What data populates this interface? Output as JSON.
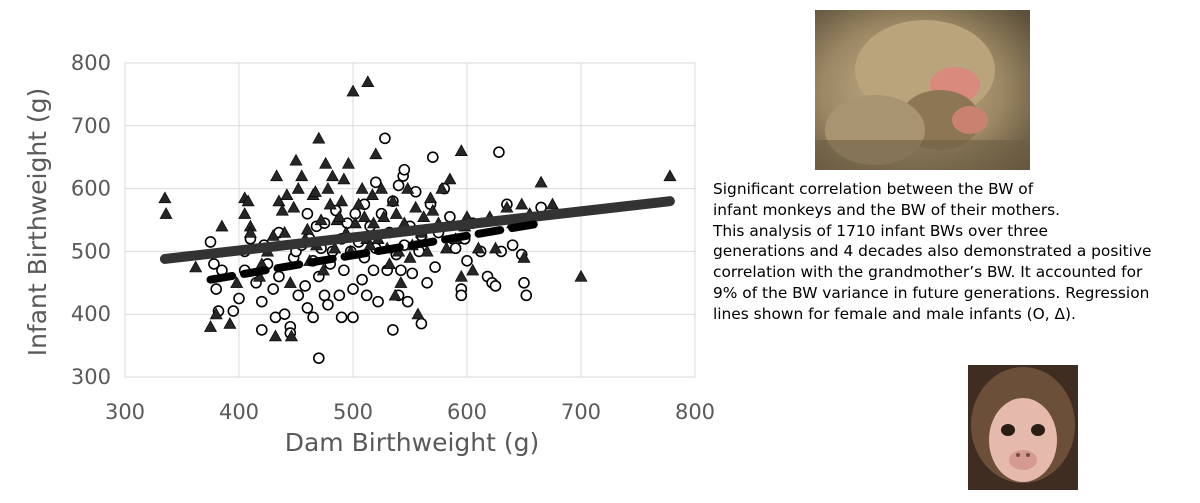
{
  "chart_data": {
    "type": "scatter",
    "title": "",
    "xlabel": "Dam Birthweight (g)",
    "ylabel": "Infant Birthweight (g)",
    "xlim": [
      300,
      800
    ],
    "ylim": [
      300,
      800
    ],
    "xticks": [
      300,
      400,
      500,
      600,
      700,
      800
    ],
    "yticks": [
      300,
      400,
      500,
      600,
      700,
      800
    ],
    "grid": true,
    "legend": "none",
    "series": [
      {
        "marker": "circle-open",
        "color": "#000000",
        "points": [
          [
            375,
            515
          ],
          [
            378,
            480
          ],
          [
            380,
            440
          ],
          [
            382,
            405
          ],
          [
            385,
            470
          ],
          [
            395,
            405
          ],
          [
            400,
            425
          ],
          [
            405,
            470
          ],
          [
            405,
            500
          ],
          [
            410,
            520
          ],
          [
            415,
            450
          ],
          [
            420,
            375
          ],
          [
            420,
            420
          ],
          [
            422,
            510
          ],
          [
            425,
            480
          ],
          [
            430,
            440
          ],
          [
            432,
            395
          ],
          [
            435,
            460
          ],
          [
            435,
            530
          ],
          [
            440,
            400
          ],
          [
            445,
            380
          ],
          [
            445,
            370
          ],
          [
            448,
            490
          ],
          [
            450,
            500
          ],
          [
            452,
            430
          ],
          [
            455,
            510
          ],
          [
            458,
            445
          ],
          [
            460,
            410
          ],
          [
            460,
            560
          ],
          [
            462,
            520
          ],
          [
            465,
            485
          ],
          [
            465,
            395
          ],
          [
            468,
            540
          ],
          [
            470,
            330
          ],
          [
            470,
            460
          ],
          [
            472,
            505
          ],
          [
            475,
            430
          ],
          [
            475,
            545
          ],
          [
            478,
            415
          ],
          [
            480,
            480
          ],
          [
            482,
            500
          ],
          [
            485,
            565
          ],
          [
            488,
            430
          ],
          [
            490,
            520
          ],
          [
            490,
            395
          ],
          [
            492,
            470
          ],
          [
            495,
            545
          ],
          [
            498,
            500
          ],
          [
            500,
            395
          ],
          [
            500,
            440
          ],
          [
            502,
            560
          ],
          [
            505,
            515
          ],
          [
            508,
            455
          ],
          [
            510,
            490
          ],
          [
            510,
            575
          ],
          [
            512,
            430
          ],
          [
            515,
            540
          ],
          [
            518,
            470
          ],
          [
            520,
            610
          ],
          [
            520,
            505
          ],
          [
            522,
            420
          ],
          [
            525,
            560
          ],
          [
            528,
            680
          ],
          [
            530,
            470
          ],
          [
            532,
            530
          ],
          [
            535,
            375
          ],
          [
            535,
            580
          ],
          [
            538,
            495
          ],
          [
            540,
            430
          ],
          [
            540,
            605
          ],
          [
            542,
            470
          ],
          [
            544,
            620
          ],
          [
            545,
            630
          ],
          [
            545,
            510
          ],
          [
            548,
            420
          ],
          [
            550,
            540
          ],
          [
            552,
            465
          ],
          [
            555,
            595
          ],
          [
            558,
            500
          ],
          [
            560,
            385
          ],
          [
            560,
            525
          ],
          [
            565,
            450
          ],
          [
            568,
            575
          ],
          [
            570,
            650
          ],
          [
            572,
            475
          ],
          [
            575,
            530
          ],
          [
            580,
            600
          ],
          [
            585,
            555
          ],
          [
            590,
            505
          ],
          [
            595,
            440
          ],
          [
            595,
            430
          ],
          [
            598,
            520
          ],
          [
            600,
            485
          ],
          [
            605,
            545
          ],
          [
            612,
            500
          ],
          [
            618,
            460
          ],
          [
            622,
            450
          ],
          [
            625,
            445
          ],
          [
            628,
            658
          ],
          [
            630,
            500
          ],
          [
            635,
            575
          ],
          [
            640,
            510
          ],
          [
            648,
            495
          ],
          [
            650,
            450
          ],
          [
            652,
            430
          ],
          [
            665,
            570
          ]
        ]
      },
      {
        "marker": "triangle-filled",
        "color": "#262626",
        "points": [
          [
            335,
            585
          ],
          [
            336,
            560
          ],
          [
            362,
            475
          ],
          [
            375,
            380
          ],
          [
            380,
            400
          ],
          [
            385,
            540
          ],
          [
            392,
            385
          ],
          [
            398,
            450
          ],
          [
            405,
            585
          ],
          [
            405,
            560
          ],
          [
            408,
            580
          ],
          [
            410,
            540
          ],
          [
            410,
            530
          ],
          [
            418,
            460
          ],
          [
            420,
            480
          ],
          [
            425,
            500
          ],
          [
            430,
            525
          ],
          [
            432,
            365
          ],
          [
            433,
            620
          ],
          [
            435,
            580
          ],
          [
            438,
            565
          ],
          [
            440,
            530
          ],
          [
            442,
            590
          ],
          [
            445,
            450
          ],
          [
            446,
            365
          ],
          [
            448,
            570
          ],
          [
            450,
            645
          ],
          [
            452,
            600
          ],
          [
            455,
            620
          ],
          [
            458,
            520
          ],
          [
            460,
            535
          ],
          [
            462,
            485
          ],
          [
            465,
            590
          ],
          [
            467,
            595
          ],
          [
            468,
            510
          ],
          [
            470,
            680
          ],
          [
            472,
            550
          ],
          [
            474,
            470
          ],
          [
            476,
            640
          ],
          [
            478,
            600
          ],
          [
            480,
            575
          ],
          [
            482,
            620
          ],
          [
            484,
            505
          ],
          [
            486,
            550
          ],
          [
            488,
            555
          ],
          [
            490,
            580
          ],
          [
            492,
            615
          ],
          [
            494,
            530
          ],
          [
            496,
            640
          ],
          [
            498,
            500
          ],
          [
            500,
            755
          ],
          [
            502,
            545
          ],
          [
            505,
            575
          ],
          [
            508,
            600
          ],
          [
            510,
            555
          ],
          [
            512,
            520
          ],
          [
            513,
            770
          ],
          [
            515,
            510
          ],
          [
            517,
            590
          ],
          [
            518,
            545
          ],
          [
            520,
            655
          ],
          [
            522,
            520
          ],
          [
            525,
            600
          ],
          [
            527,
            555
          ],
          [
            530,
            505
          ],
          [
            532,
            480
          ],
          [
            535,
            580
          ],
          [
            537,
            430
          ],
          [
            538,
            560
          ],
          [
            540,
            500
          ],
          [
            542,
            450
          ],
          [
            545,
            545
          ],
          [
            548,
            600
          ],
          [
            550,
            490
          ],
          [
            552,
            510
          ],
          [
            555,
            570
          ],
          [
            557,
            400
          ],
          [
            560,
            530
          ],
          [
            562,
            555
          ],
          [
            565,
            500
          ],
          [
            568,
            585
          ],
          [
            570,
            565
          ],
          [
            575,
            545
          ],
          [
            578,
            600
          ],
          [
            582,
            505
          ],
          [
            585,
            615
          ],
          [
            590,
            520
          ],
          [
            595,
            660
          ],
          [
            595,
            460
          ],
          [
            598,
            540
          ],
          [
            600,
            555
          ],
          [
            605,
            470
          ],
          [
            610,
            505
          ],
          [
            620,
            555
          ],
          [
            625,
            505
          ],
          [
            635,
            570
          ],
          [
            640,
            545
          ],
          [
            648,
            575
          ],
          [
            650,
            490
          ],
          [
            655,
            560
          ],
          [
            665,
            610
          ],
          [
            675,
            575
          ],
          [
            700,
            460
          ],
          [
            778,
            620
          ]
        ]
      }
    ],
    "regression_lines": [
      {
        "style": "solid",
        "color": "#333333",
        "x": [
          335,
          778
        ],
        "y": [
          488,
          580
        ]
      },
      {
        "style": "dashed",
        "color": "#000000",
        "x": [
          375,
          665
        ],
        "y": [
          455,
          545
        ]
      }
    ]
  },
  "caption": {
    "lines": [
      "Significant correlation between the BW of",
      "infant monkeys and the BW of their mothers.",
      "This analysis of 1710 infant BWs over three",
      "generations and 4 decades also demonstrated a positive",
      "correlation with the grandmother’s BW. It accounted for",
      "9% of the BW variance in future generations. Regression",
      "lines shown for female and male infants (O, Δ)."
    ]
  },
  "photos": {
    "top": {
      "subject": "monkey-mother-nursing",
      "colors": [
        "#8a7a5e",
        "#c4b08a",
        "#e08a7a"
      ]
    },
    "bottom": {
      "subject": "infant-monkey-face",
      "colors": [
        "#3a2a1e",
        "#e8b8b0",
        "#8a6a4a"
      ]
    }
  }
}
